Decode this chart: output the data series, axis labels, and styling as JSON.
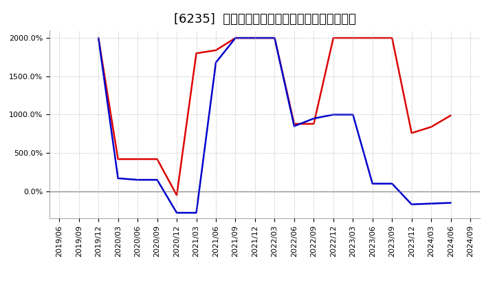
{
  "title": "[6235]  有利子負債キャッシュフロー比率の推移",
  "background_color": "#ffffff",
  "plot_bg_color": "#ffffff",
  "grid_color": "#aaaaaa",
  "zero_line_color": "#888888",
  "x_dates": [
    "2019/06",
    "2019/09",
    "2019/12",
    "2020/03",
    "2020/06",
    "2020/09",
    "2020/12",
    "2021/03",
    "2021/06",
    "2021/09",
    "2021/12",
    "2022/03",
    "2022/06",
    "2022/09",
    "2022/12",
    "2023/03",
    "2023/06",
    "2023/09",
    "2023/12",
    "2024/03",
    "2024/06",
    "2024/09"
  ],
  "series_operating": {
    "color": "#dd0000",
    "values": [
      null,
      null,
      2000,
      420,
      420,
      420,
      -50,
      1800,
      1840,
      2000,
      2000,
      2000,
      880,
      880,
      2000,
      2000,
      2000,
      2000,
      760,
      840,
      990,
      null
    ]
  },
  "series_free": {
    "color": "#0000cc",
    "values": [
      null,
      null,
      2000,
      170,
      150,
      150,
      -280,
      -280,
      1680,
      2000,
      2000,
      2000,
      850,
      950,
      1000,
      1000,
      100,
      100,
      -170,
      -160,
      -150,
      null
    ]
  },
  "ylim_low": -350,
  "ylim_high": 2100,
  "yticks": [
    0,
    500,
    1000,
    1500,
    2000
  ],
  "title_fontsize": 13,
  "tick_fontsize": 8,
  "legend_fontsize": 10,
  "line_width": 1.8
}
